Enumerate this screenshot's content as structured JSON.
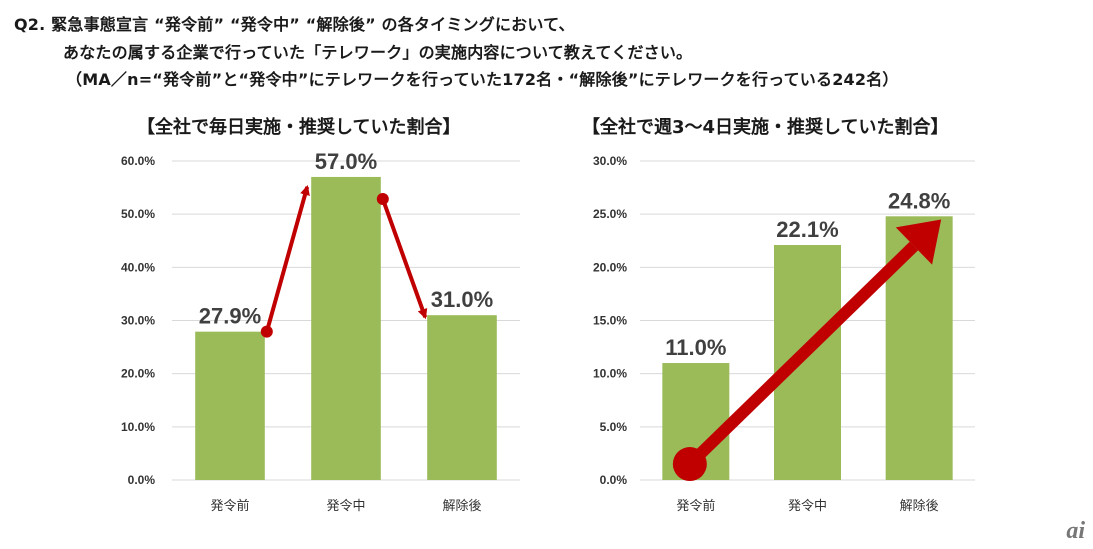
{
  "question": {
    "line1": "Q2. 緊急事態宣言 “発令前” “発令中” “解除後” の各タイミングにおいて、",
    "line2": "あなたの属する企業で行っていた「テレワーク」の実施内容について教えてください。",
    "line3": "（MA／n=“発令前”と“発令中”にテレワークを行っていた172名・“解除後”にテレワークを行っている242名）"
  },
  "logo": "ai",
  "colors": {
    "bar": "#9bbb59",
    "arrow": "#c00000",
    "grid": "#d9d9d9"
  },
  "chart_data": [
    {
      "type": "bar",
      "title": "【全社で毎日実施・推奨していた割合】",
      "categories": [
        "発令前",
        "発令中",
        "解除後"
      ],
      "values": [
        27.9,
        57.0,
        31.0
      ],
      "value_labels": [
        "27.9%",
        "57.0%",
        "31.0%"
      ],
      "ylim": [
        0,
        60
      ],
      "yticks": [
        0,
        10,
        20,
        30,
        40,
        50,
        60
      ],
      "ytick_labels": [
        "0.0%",
        "10.0%",
        "20.0%",
        "30.0%",
        "40.0%",
        "50.0%",
        "60.0%"
      ],
      "grid": true,
      "annotations": "arrows up from 発令前 to 発令中 and down to 解除後"
    },
    {
      "type": "bar",
      "title": "【全社で週3～4日実施・推奨していた割合】",
      "categories": [
        "発令前",
        "発令中",
        "解除後"
      ],
      "values": [
        11.0,
        22.1,
        24.8
      ],
      "value_labels": [
        "11.0%",
        "22.1%",
        "24.8%"
      ],
      "ylim": [
        0,
        30
      ],
      "yticks": [
        0,
        5,
        10,
        15,
        20,
        25,
        30
      ],
      "ytick_labels": [
        "0.0%",
        "5.0%",
        "10.0%",
        "15.0%",
        "20.0%",
        "25.0%",
        "30.0%"
      ],
      "grid": true,
      "annotations": "large upward trend arrow"
    }
  ]
}
